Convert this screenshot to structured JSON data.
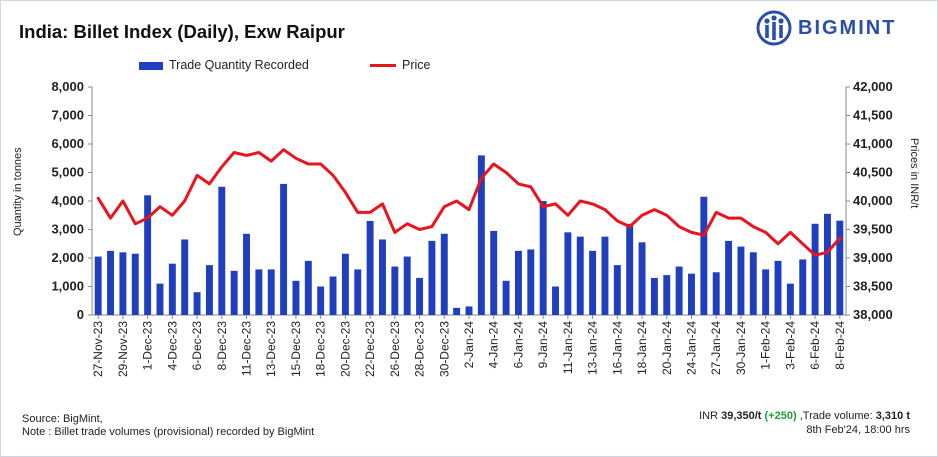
{
  "title": "India: Billet Index (Daily), Exw Raipur",
  "brand": "BIGMINT",
  "legend": {
    "bars": "Trade Quantity Recorded",
    "line": "Price"
  },
  "colors": {
    "bar": "#1f3fbf",
    "line": "#e8141e",
    "change": "#1e9e3a",
    "brand": "#2b4fa8"
  },
  "footer": {
    "source": "Source: BigMint,",
    "note": "Note : Billet trade volumes (provisional) recorded by BigMint",
    "price_prefix": "INR",
    "price_value": "39,350/t",
    "price_change": "(+250)",
    "volume_label": ",Trade volume:",
    "volume_value": "3,310 t",
    "timestamp": "8th Feb'24, 18:00 hrs"
  },
  "chart_data": {
    "type": "bar+line",
    "title": "India: Billet Index (Daily), Exw Raipur",
    "ylabel": "Quantity in tonnes",
    "y2label": "Prices in INR/t",
    "ylim": [
      0,
      8000
    ],
    "y2lim": [
      38000,
      42000
    ],
    "yticks": [
      "0",
      "1,000",
      "2,000",
      "3,000",
      "4,000",
      "5,000",
      "6,000",
      "7,000",
      "8,000"
    ],
    "y2ticks": [
      "38,000",
      "38,500",
      "39,000",
      "39,500",
      "40,000",
      "40,500",
      "41,000",
      "41,500",
      "42,000"
    ],
    "x_tick_labels": [
      "27-Nov-23",
      "29-Nov-23",
      "1-Dec-23",
      "4-Dec-23",
      "6-Dec-23",
      "8-Dec-23",
      "11-Dec-23",
      "13-Dec-23",
      "15-Dec-23",
      "18-Dec-23",
      "20-Dec-23",
      "22-Dec-23",
      "26-Dec-23",
      "28-Dec-23",
      "30-Dec-23",
      "2-Jan-24",
      "4-Jan-24",
      "6-Jan-24",
      "9-Jan-24",
      "11-Jan-24",
      "13-Jan-24",
      "16-Jan-24",
      "18-Jan-24",
      "20-Jan-24",
      "24-Jan-24",
      "27-Jan-24",
      "30-Jan-24",
      "1-Feb-24",
      "3-Feb-24",
      "6-Feb-24",
      "8-Feb-24"
    ],
    "series": [
      {
        "name": "Trade Quantity Recorded",
        "axis": "left",
        "values": [
          2050,
          2250,
          2200,
          2150,
          4200,
          1100,
          1800,
          2650,
          800,
          1750,
          4500,
          1550,
          2850,
          1600,
          1600,
          4600,
          1200,
          1900,
          1000,
          1350,
          2150,
          1600,
          3300,
          2650,
          1700,
          2050,
          1300,
          2600,
          2850,
          250,
          300,
          5600,
          2950,
          1200,
          2250,
          2300,
          4000,
          1000,
          2900,
          2750,
          2250,
          2750,
          1750,
          3200,
          2550,
          1300,
          1400,
          1700,
          1450,
          4150,
          1500,
          2600,
          2400,
          2200,
          1600,
          1900,
          1100,
          1950,
          3200,
          3550,
          3310
        ]
      },
      {
        "name": "Price",
        "axis": "right",
        "values": [
          40050,
          39700,
          40000,
          39600,
          39700,
          39900,
          39750,
          40000,
          40450,
          40300,
          40600,
          40850,
          40800,
          40850,
          40700,
          40900,
          40750,
          40650,
          40650,
          40450,
          40150,
          39800,
          39800,
          39950,
          39450,
          39600,
          39500,
          39550,
          39900,
          40000,
          39850,
          40400,
          40650,
          40500,
          40300,
          40250,
          39900,
          39950,
          39750,
          40000,
          39950,
          39850,
          39650,
          39550,
          39750,
          39850,
          39750,
          39550,
          39450,
          39400,
          39800,
          39700,
          39700,
          39550,
          39450,
          39250,
          39450,
          39250,
          39050,
          39100,
          39350
        ]
      }
    ]
  }
}
